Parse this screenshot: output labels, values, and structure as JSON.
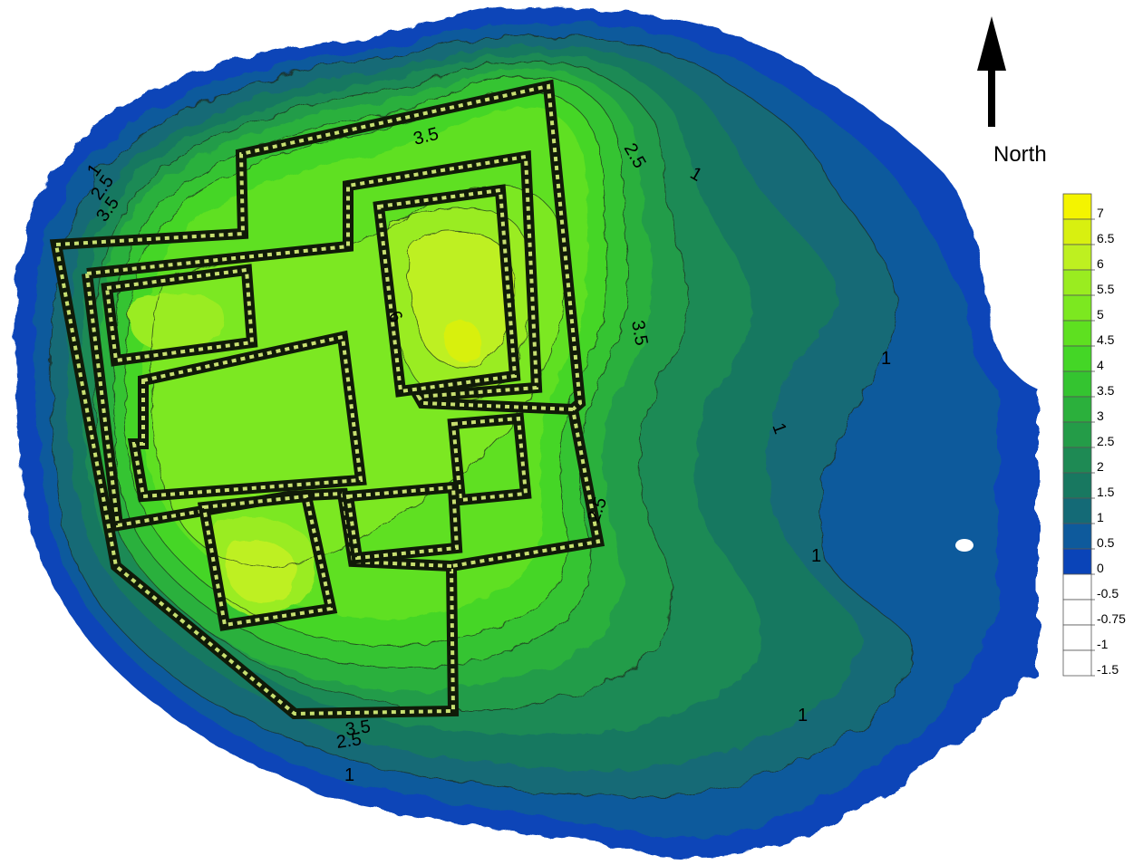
{
  "north_arrow": {
    "label": "North",
    "icon": "north-arrow-icon"
  },
  "legend": {
    "levels": [
      {
        "label": "7",
        "color": "#f4f400"
      },
      {
        "label": "6.5",
        "color": "#d8f010"
      },
      {
        "label": "6",
        "color": "#bef020"
      },
      {
        "label": "5.5",
        "color": "#9aec20"
      },
      {
        "label": "5",
        "color": "#7ce820"
      },
      {
        "label": "4.5",
        "color": "#5ee020"
      },
      {
        "label": "4",
        "color": "#44d626"
      },
      {
        "label": "3.5",
        "color": "#34c430"
      },
      {
        "label": "3",
        "color": "#2bb03c"
      },
      {
        "label": "2.5",
        "color": "#249c48"
      },
      {
        "label": "2",
        "color": "#1e8a54"
      },
      {
        "label": "1.5",
        "color": "#187860"
      },
      {
        "label": "1",
        "color": "#146a76"
      },
      {
        "label": "0.5",
        "color": "#0e5a9c"
      },
      {
        "label": "0",
        "color": "#0a44b8"
      },
      {
        "label": "-0.5",
        "color": "#ffffff"
      },
      {
        "label": "-0.75",
        "color": "#ffffff"
      },
      {
        "label": "-1",
        "color": "#ffffff"
      },
      {
        "label": "-1.5",
        "color": "#ffffff"
      }
    ]
  },
  "contour_labels": [
    {
      "text": "1"
    },
    {
      "text": "2.5"
    },
    {
      "text": "3.5"
    },
    {
      "text": "3.5"
    },
    {
      "text": "2.5"
    },
    {
      "text": "1"
    },
    {
      "text": "6"
    },
    {
      "text": "3.5"
    },
    {
      "text": "1"
    },
    {
      "text": "1"
    },
    {
      "text": "2.5"
    },
    {
      "text": "1"
    },
    {
      "text": "1"
    },
    {
      "text": "3.5"
    },
    {
      "text": "2.5"
    },
    {
      "text": "1"
    }
  ],
  "colors": {
    "level_0": "#0a44b8",
    "level_0_5": "#0e5a9c",
    "level_1": "#146a76",
    "level_1_5": "#187860",
    "level_2": "#1e8a54",
    "level_2_5": "#249c48",
    "level_3": "#2bb03c",
    "level_3_5": "#34c430",
    "level_4": "#44d626",
    "level_4_5": "#5ee020",
    "level_5": "#7ce820",
    "level_5_5": "#9aec20",
    "level_6": "#bef020",
    "level_6_5": "#d8f010",
    "level_7": "#f4f400",
    "wall": "#101a08"
  }
}
